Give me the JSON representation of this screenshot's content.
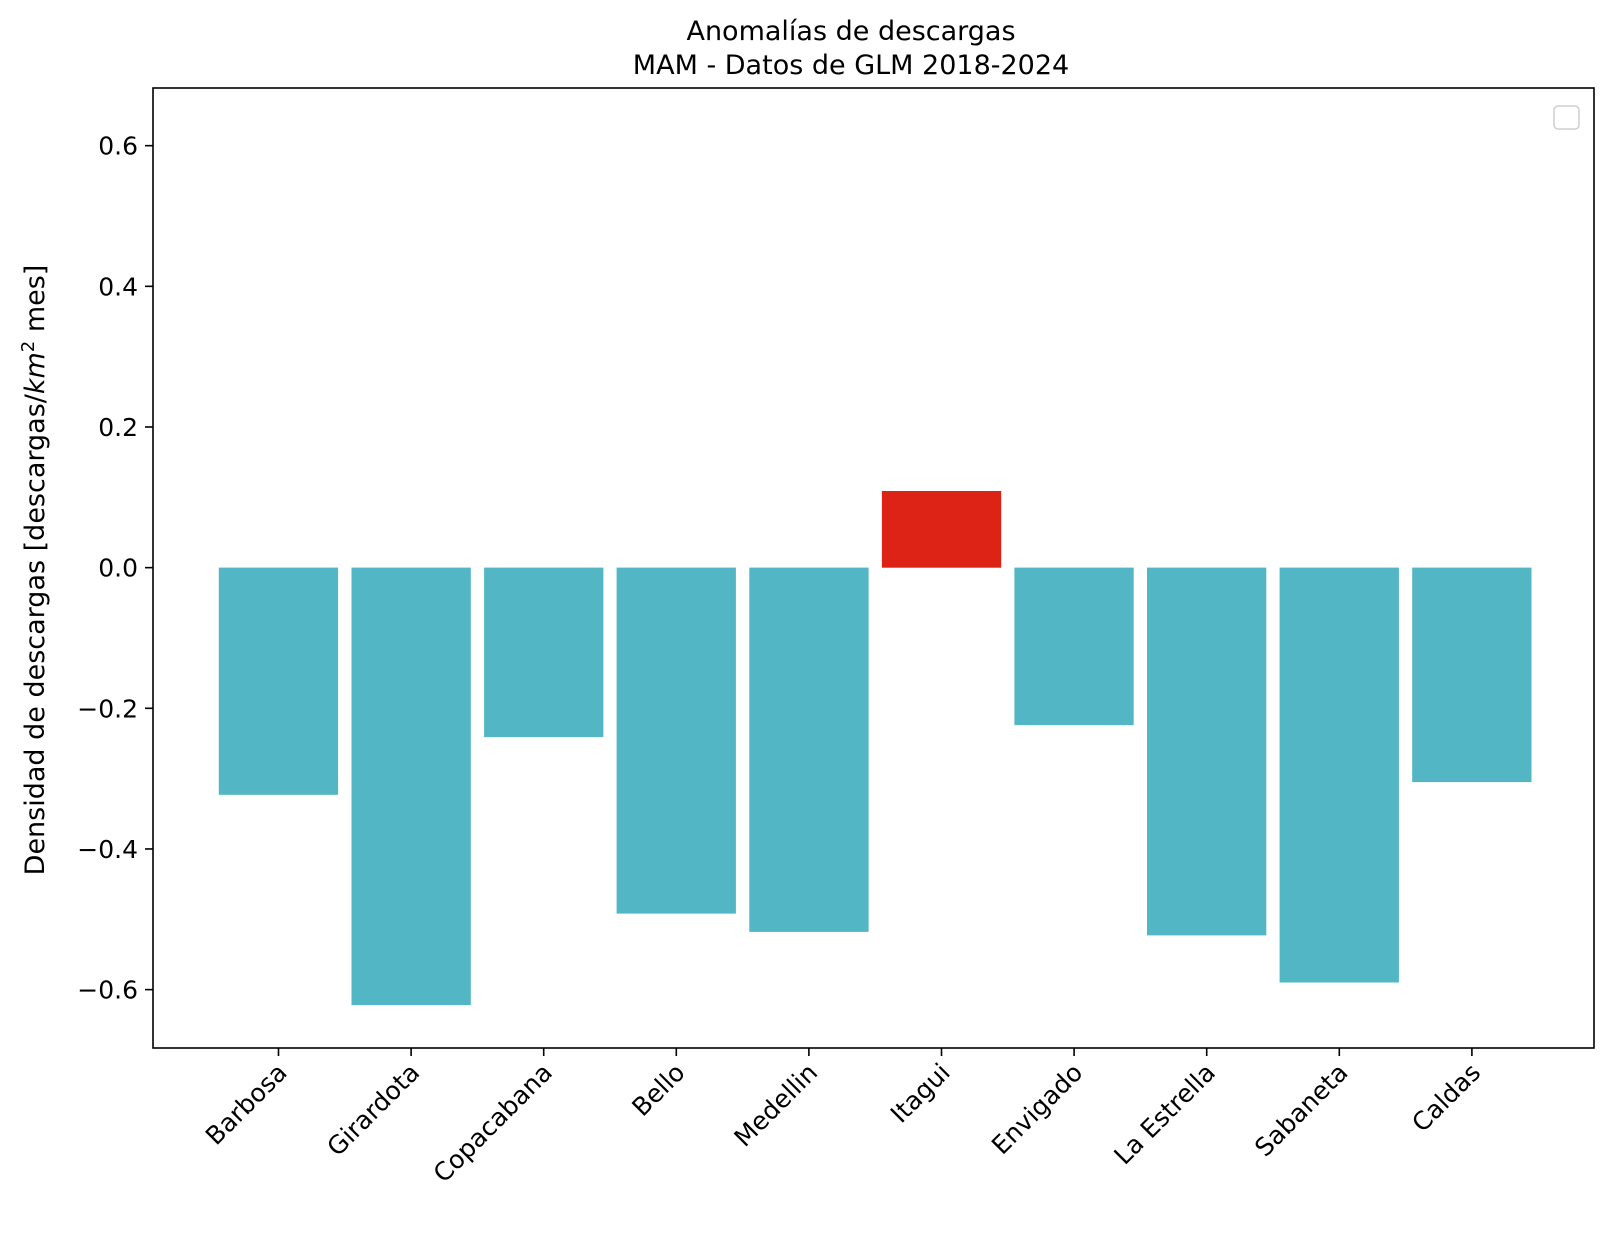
{
  "chart_data": {
    "type": "bar",
    "title": "Anomalías de descargas",
    "subtitle": "MAM - Datos de GLM 2018-2024",
    "xlabel": "",
    "ylabel": "Densidad de descargas [descargas/km² mes]",
    "ylabel_parts": {
      "before": "Densidad de descargas [descargas/",
      "unit": "km",
      "sup": "2",
      "after": " mes]"
    },
    "categories": [
      "Barbosa",
      "Girardota",
      "Copacabana",
      "Bello",
      "Medellin",
      "Itagui",
      "Envigado",
      "La Estrella",
      "Sabaneta",
      "Caldas"
    ],
    "values": [
      -0.323,
      -0.622,
      -0.241,
      -0.492,
      -0.518,
      0.109,
      -0.224,
      -0.523,
      -0.59,
      -0.305
    ],
    "ylim": [
      -0.683,
      0.682
    ],
    "yticks": [
      0.6,
      0.4,
      0.2,
      0.0,
      -0.2,
      -0.4,
      -0.6
    ],
    "ytick_labels": [
      "0.6",
      "0.4",
      "0.2",
      "0.0",
      "−0.2",
      "−0.4",
      "−0.6"
    ],
    "colors": {
      "negative": "#52b6c4",
      "positive": "#dd2216"
    },
    "grid": false,
    "legend": {
      "placement": "top-right",
      "entries": []
    }
  }
}
